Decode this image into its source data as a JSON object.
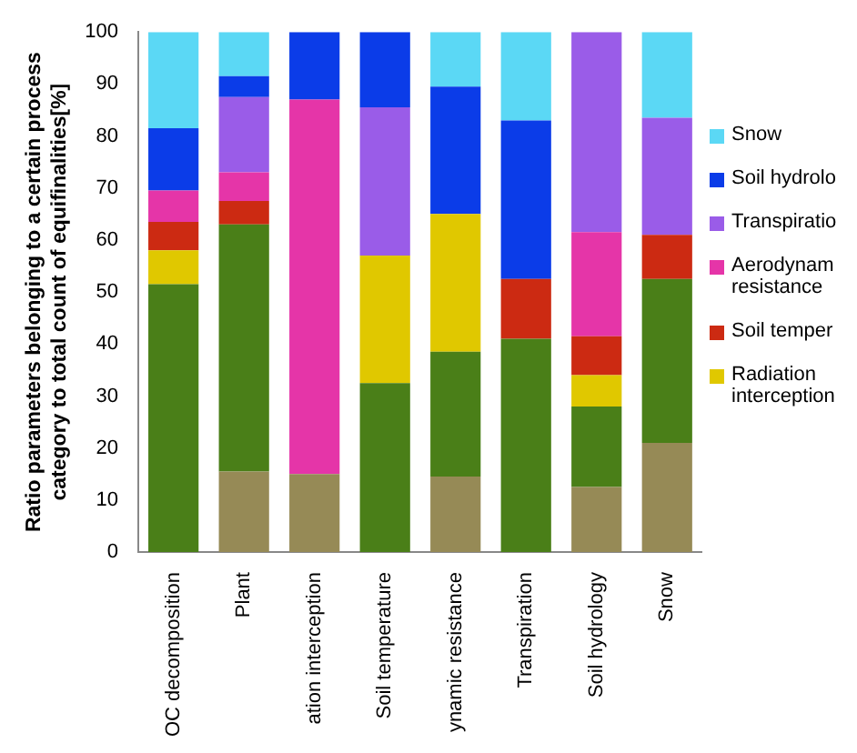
{
  "chart_data": {
    "type": "bar",
    "stacked": true,
    "ylabel": "Ratio parameters belonging to a certain process category to total count of equifinalities[%]",
    "categories": [
      "OC decomposition",
      "Plant",
      "ation interception",
      "Soil temperature",
      "ynamic resistance",
      "Transpiration",
      "Soil hydrology",
      "Snow"
    ],
    "series": [
      {
        "color": "#968a56",
        "values": [
          0,
          15.5,
          15,
          0,
          14.5,
          0,
          12.5,
          21
        ]
      },
      {
        "color": "#4a7f18",
        "values": [
          51.5,
          47.5,
          0,
          32.5,
          24,
          41,
          15.5,
          31.5
        ]
      },
      {
        "name": "Radiation interception",
        "color": "#e0c800",
        "values": [
          6.5,
          0,
          0,
          24.5,
          26.5,
          0,
          6,
          0
        ]
      },
      {
        "name": "Soil temper",
        "color": "#cc2a12",
        "values": [
          5.5,
          4.5,
          0,
          0,
          0,
          11.5,
          7.5,
          8.5
        ]
      },
      {
        "name": "Aerodynam resistance",
        "color": "#e535a8",
        "values": [
          6,
          5.5,
          72,
          0,
          0,
          0,
          20,
          0
        ]
      },
      {
        "name": "Transpiratio",
        "color": "#9a5ce8",
        "values": [
          0,
          14.5,
          0,
          28.5,
          0,
          0,
          38.5,
          22.5
        ]
      },
      {
        "name": "Soil hydrolo",
        "color": "#0b3ce8",
        "values": [
          12,
          4,
          13,
          14.5,
          24.5,
          30.5,
          0,
          0
        ]
      },
      {
        "name": "Snow",
        "color": "#5bd8f5",
        "values": [
          18.5,
          8.5,
          0,
          0,
          10.5,
          17,
          0,
          16.5
        ]
      }
    ],
    "ylim": [
      0,
      100
    ],
    "yticks": [
      0,
      10,
      20,
      30,
      40,
      50,
      60,
      70,
      80,
      90,
      100
    ],
    "grid": false,
    "legend": "right"
  }
}
